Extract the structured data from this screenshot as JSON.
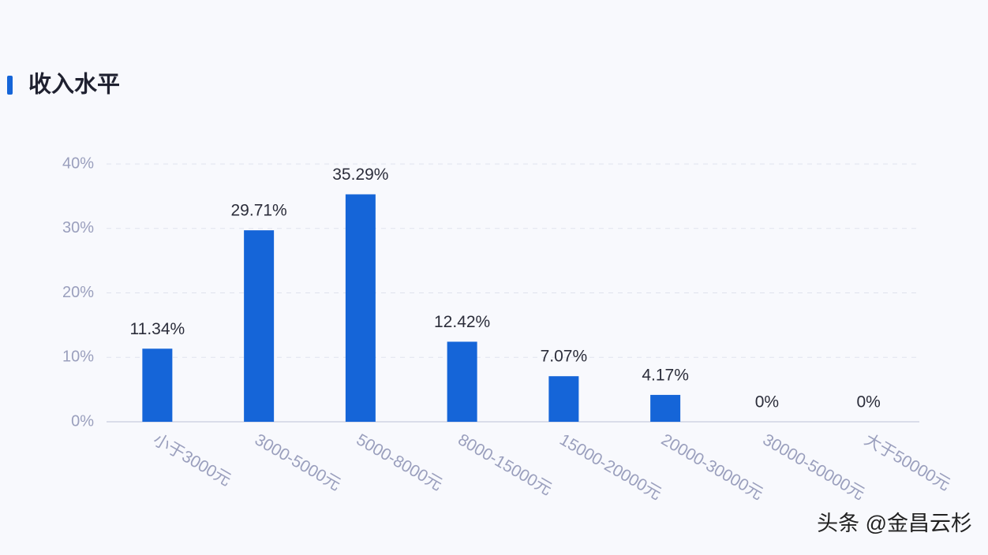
{
  "chart_data": {
    "type": "bar",
    "title": "收入水平",
    "categories": [
      "小于3000元",
      "3000-5000元",
      "5000-8000元",
      "8000-15000元",
      "15000-20000元",
      "20000-30000元",
      "30000-50000元",
      "大于50000元"
    ],
    "values": [
      11.34,
      29.71,
      35.29,
      12.42,
      7.07,
      4.17,
      0,
      0
    ],
    "value_labels": [
      "11.34%",
      "29.71%",
      "35.29%",
      "12.42%",
      "7.07%",
      "4.17%",
      "0%",
      "0%"
    ],
    "color": "#1565d8",
    "ylim": [
      0,
      40
    ],
    "yticks": [
      {
        "value": 0,
        "label": "0%"
      },
      {
        "value": 10,
        "label": "10%"
      },
      {
        "value": 20,
        "label": "20%"
      },
      {
        "value": 30,
        "label": "30%"
      },
      {
        "value": 40,
        "label": "40%"
      }
    ],
    "grid": true,
    "watermark": "头条 @金昌云杉"
  }
}
